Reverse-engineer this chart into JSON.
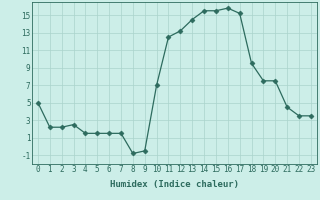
{
  "x": [
    0,
    1,
    2,
    3,
    4,
    5,
    6,
    7,
    8,
    9,
    10,
    11,
    12,
    13,
    14,
    15,
    16,
    17,
    18,
    19,
    20,
    21,
    22,
    23
  ],
  "y": [
    5.0,
    2.2,
    2.2,
    2.5,
    1.5,
    1.5,
    1.5,
    1.5,
    -0.8,
    -0.5,
    7.0,
    12.5,
    13.2,
    14.5,
    15.5,
    15.5,
    15.8,
    15.2,
    9.5,
    7.5,
    7.5,
    4.5,
    3.5,
    3.5
  ],
  "line_color": "#2d6b5e",
  "marker": "D",
  "marker_size": 2.5,
  "bg_color": "#cceee8",
  "grid_color": "#aad4cc",
  "xlabel": "Humidex (Indice chaleur)",
  "xlim": [
    -0.5,
    23.5
  ],
  "ylim": [
    -2.0,
    16.5
  ],
  "yticks": [
    -1,
    1,
    3,
    5,
    7,
    9,
    11,
    13,
    15
  ],
  "xtick_labels": [
    "0",
    "1",
    "2",
    "3",
    "4",
    "5",
    "6",
    "7",
    "8",
    "9",
    "10",
    "11",
    "12",
    "13",
    "14",
    "15",
    "16",
    "17",
    "18",
    "19",
    "20",
    "21",
    "22",
    "23"
  ],
  "tick_fontsize": 5.5,
  "label_fontsize": 6.5
}
